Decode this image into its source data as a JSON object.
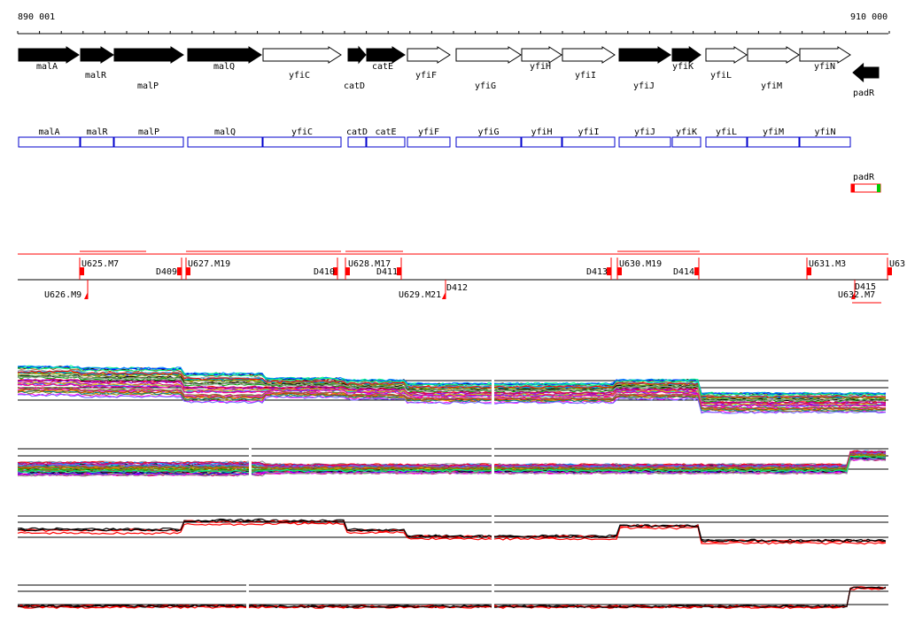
{
  "axis": {
    "start": "890 001",
    "end": "910 000"
  },
  "genes": [
    {
      "name": "malA",
      "strand": "+",
      "filled": true
    },
    {
      "name": "malR",
      "strand": "+",
      "filled": true
    },
    {
      "name": "malP",
      "strand": "+",
      "filled": true
    },
    {
      "name": "malQ",
      "strand": "+",
      "filled": true
    },
    {
      "name": "yfiC",
      "strand": "+",
      "filled": false
    },
    {
      "name": "catD",
      "strand": "+",
      "filled": true
    },
    {
      "name": "catE",
      "strand": "+",
      "filled": true
    },
    {
      "name": "yfiF",
      "strand": "+",
      "filled": false
    },
    {
      "name": "yfiG",
      "strand": "+",
      "filled": false
    },
    {
      "name": "yfiH",
      "strand": "+",
      "filled": false
    },
    {
      "name": "yfiI",
      "strand": "+",
      "filled": false
    },
    {
      "name": "yfiJ",
      "strand": "+",
      "filled": true
    },
    {
      "name": "yfiK",
      "strand": "+",
      "filled": true
    },
    {
      "name": "yfiL",
      "strand": "+",
      "filled": false
    },
    {
      "name": "yfiM",
      "strand": "+",
      "filled": false
    },
    {
      "name": "yfiN",
      "strand": "+",
      "filled": false
    },
    {
      "name": "padR",
      "strand": "-",
      "filled": true
    }
  ],
  "gene_boxes": [
    "malA",
    "malR",
    "malP",
    "malQ",
    "yfiC",
    "catD",
    "catE",
    "yfiF",
    "yfiG",
    "yfiH",
    "yfiI",
    "yfiJ",
    "yfiK",
    "yfiL",
    "yfiM",
    "yfiN"
  ],
  "padr_box": {
    "label": "padR"
  },
  "segments_upper": [
    "U625.M7",
    "D409",
    "U627.M19",
    "D410",
    "U628.M17",
    "D411",
    "D413",
    "U630.M19",
    "D414",
    "U631.M3",
    "U63"
  ],
  "segments_lower": [
    "U626.M9",
    "U629.M21",
    "D412",
    "D415",
    "U632.M7"
  ],
  "colors": {
    "gene_box_stroke": "#0000cc",
    "segment_red": "#ff0000",
    "padr_left": "#ff0000",
    "padr_right": "#00cc00"
  }
}
